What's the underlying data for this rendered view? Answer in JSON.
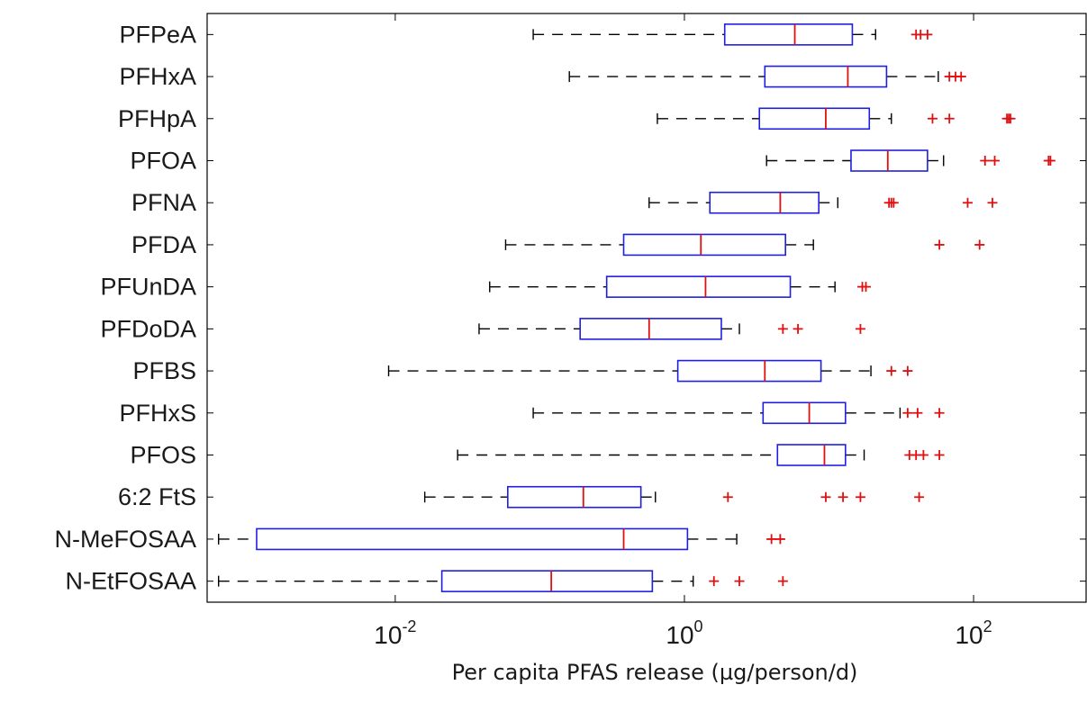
{
  "chart_data": {
    "type": "boxplot",
    "orientation": "horizontal",
    "xlabel": "Per capita PFAS release (µg/person/d)",
    "xscale": "log",
    "xlim": [
      0.0005,
      600
    ],
    "xticks": [
      {
        "value": 0.01,
        "base": "10",
        "exp": "-2"
      },
      {
        "value": 1,
        "base": "10",
        "exp": "0"
      },
      {
        "value": 100,
        "base": "10",
        "exp": "2"
      }
    ],
    "grid": false,
    "colors": {
      "box": "#1f1fe0",
      "median": "#e01010",
      "whisker": "#000000",
      "outlier": "#e01010",
      "axis": "#000000"
    },
    "categories": [
      "PFPeA",
      "PFHxA",
      "PFHpA",
      "PFOA",
      "PFNA",
      "PFDA",
      "PFUnDA",
      "PFDoDA",
      "PFBS",
      "PFHxS",
      "PFOS",
      "6:2 FtS",
      "N-MeFOSAA",
      "N-EtFOSAA"
    ],
    "boxes": [
      {
        "label": "PFPeA",
        "whisker_low": 0.09,
        "q1": 1.9,
        "median": 5.8,
        "q3": 14.5,
        "whisker_high": 21,
        "outliers": [
          40,
          43,
          48
        ]
      },
      {
        "label": "PFHxA",
        "whisker_low": 0.16,
        "q1": 3.6,
        "median": 13.5,
        "q3": 25,
        "whisker_high": 57,
        "outliers": [
          68,
          75,
          82
        ]
      },
      {
        "label": "PFHpA",
        "whisker_low": 0.65,
        "q1": 3.3,
        "median": 9.5,
        "q3": 19,
        "whisker_high": 27,
        "outliers": [
          52,
          68,
          170,
          175,
          180
        ]
      },
      {
        "label": "PFOA",
        "whisker_low": 3.7,
        "q1": 14.2,
        "median": 25.5,
        "q3": 48,
        "whisker_high": 62,
        "outliers": [
          120,
          140,
          330,
          340
        ]
      },
      {
        "label": "PFNA",
        "whisker_low": 0.57,
        "q1": 1.5,
        "median": 4.6,
        "q3": 8.5,
        "whisker_high": 11.5,
        "outliers": [
          26,
          27,
          28,
          91,
          135
        ]
      },
      {
        "label": "PFDA",
        "whisker_low": 0.058,
        "q1": 0.38,
        "median": 1.3,
        "q3": 5.0,
        "whisker_high": 7.8,
        "outliers": [
          58,
          110
        ]
      },
      {
        "label": "PFUnDA",
        "whisker_low": 0.045,
        "q1": 0.29,
        "median": 1.4,
        "q3": 5.4,
        "whisker_high": 11.0,
        "outliers": [
          17,
          18
        ]
      },
      {
        "label": "PFDoDA",
        "whisker_low": 0.038,
        "q1": 0.19,
        "median": 0.57,
        "q3": 1.8,
        "whisker_high": 2.4,
        "outliers": [
          4.8,
          6.1,
          16.5
        ]
      },
      {
        "label": "PFBS",
        "whisker_low": 0.009,
        "q1": 0.9,
        "median": 3.6,
        "q3": 8.8,
        "whisker_high": 19.5,
        "outliers": [
          27,
          35
        ]
      },
      {
        "label": "PFHxS",
        "whisker_low": 0.09,
        "q1": 3.5,
        "median": 7.3,
        "q3": 13.0,
        "whisker_high": 31,
        "outliers": [
          35,
          41,
          58
        ]
      },
      {
        "label": "PFOS",
        "whisker_low": 0.027,
        "q1": 4.4,
        "median": 9.3,
        "q3": 13.0,
        "whisker_high": 17.5,
        "outliers": [
          36,
          40,
          45,
          58
        ]
      },
      {
        "label": "6:2 FtS",
        "whisker_low": 0.016,
        "q1": 0.06,
        "median": 0.2,
        "q3": 0.5,
        "whisker_high": 0.63,
        "outliers": [
          2.0,
          9.5,
          12.5,
          16.5,
          42
        ]
      },
      {
        "label": "N-MeFOSAA",
        "whisker_low": 0.0006,
        "q1": 0.0011,
        "median": 0.38,
        "q3": 1.05,
        "whisker_high": 2.3,
        "outliers": [
          4.0,
          4.6
        ]
      },
      {
        "label": "N-EtFOSAA",
        "whisker_low": 0.0006,
        "q1": 0.021,
        "median": 0.12,
        "q3": 0.6,
        "whisker_high": 1.15,
        "outliers": [
          1.6,
          2.4,
          4.8
        ]
      }
    ]
  }
}
